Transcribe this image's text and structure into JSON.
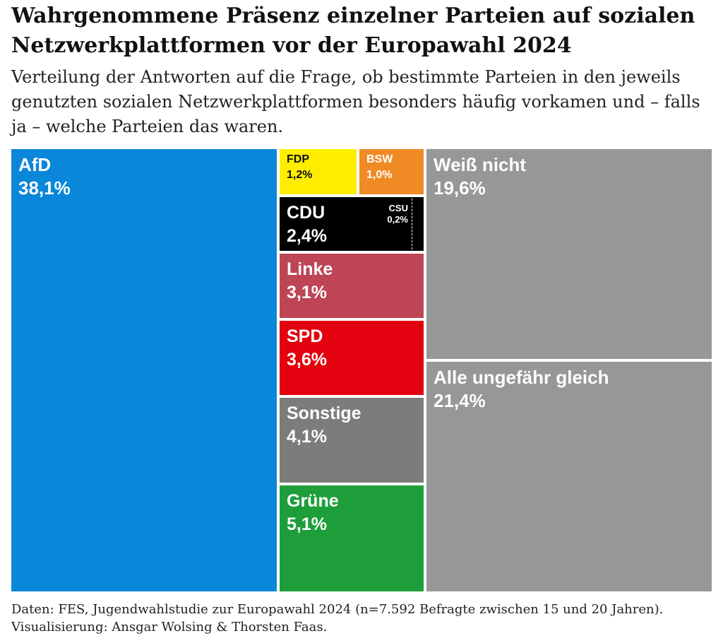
{
  "header": {
    "title": "Wahrgenommene Präsenz einzelner Parteien auf sozialen Netzwerkplattformen vor der Europawahl 2024",
    "subtitle": "Verteilung der Antworten auf die Frage, ob bestimmte Parteien in den jeweils genutzten sozialen Netzwerkplattformen besonders häufig vorkamen und – falls ja – welche Parteien das waren."
  },
  "footer": {
    "source": "Daten: FES, Jugendwahlstudie zur Europawahl 2024 (n=7.592 Befragte zwischen 15 und 20 Jahren). Visualisierung: Ansgar Wolsing & Thorsten Faas."
  },
  "chart_data": {
    "type": "treemap",
    "unit": "%",
    "items": [
      {
        "name": "AfD",
        "value": 38.1,
        "label": "38,1%",
        "color": "#0a87d8",
        "text_color": "#ffffff"
      },
      {
        "name": "FDP",
        "value": 1.2,
        "label": "1,2%",
        "color": "#ffed00",
        "text_color": "#111111"
      },
      {
        "name": "BSW",
        "value": 1.0,
        "label": "1,0%",
        "color": "#f08a24",
        "text_color": "#ffffff"
      },
      {
        "name": "CDU",
        "value": 2.4,
        "label": "2,4%",
        "color": "#000000",
        "text_color": "#ffffff"
      },
      {
        "name": "CSU",
        "value": 0.2,
        "label": "0,2%",
        "color": "#000000",
        "text_color": "#ffffff"
      },
      {
        "name": "Linke",
        "value": 3.1,
        "label": "3,1%",
        "color": "#be4555",
        "text_color": "#ffffff"
      },
      {
        "name": "SPD",
        "value": 3.6,
        "label": "3,6%",
        "color": "#e3000f",
        "text_color": "#ffffff"
      },
      {
        "name": "Sonstige",
        "value": 4.1,
        "label": "4,1%",
        "color": "#7c7c7c",
        "text_color": "#ffffff"
      },
      {
        "name": "Grüne",
        "value": 5.1,
        "label": "5,1%",
        "color": "#1e9e3a",
        "text_color": "#ffffff"
      },
      {
        "name": "Weiß nicht",
        "value": 19.6,
        "label": "19,6%",
        "color": "#979797",
        "text_color": "#ffffff"
      },
      {
        "name": "Alle ungefähr gleich",
        "value": 21.4,
        "label": "21,4%",
        "color": "#979797",
        "text_color": "#ffffff"
      }
    ]
  }
}
